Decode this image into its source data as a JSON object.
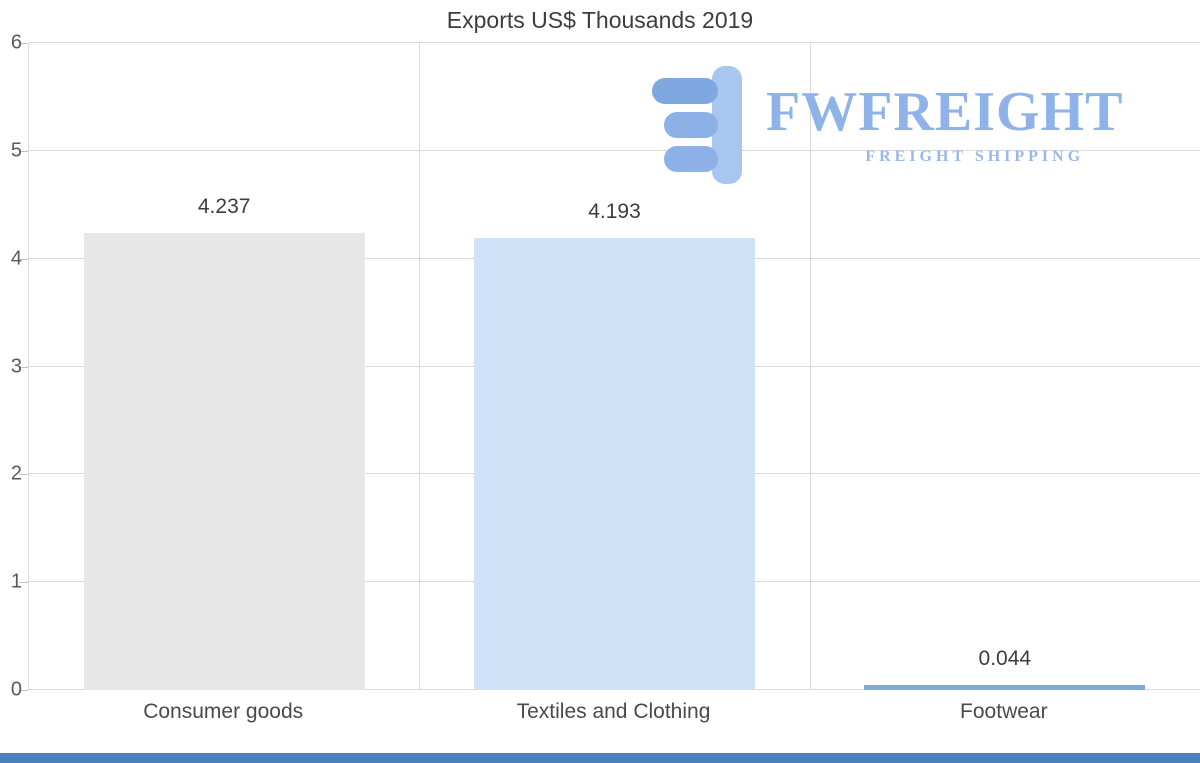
{
  "chart_data": {
    "type": "bar",
    "title": "Exports US$ Thousands 2019",
    "categories": [
      "Consumer goods",
      "Textiles and Clothing",
      "Footwear"
    ],
    "values": [
      4.237,
      4.193,
      0.044
    ],
    "value_labels": [
      "4.237",
      "4.193",
      "0.044"
    ],
    "bar_colors": [
      "#e7e7e7",
      "#cfe3f8",
      "#7fa9da"
    ],
    "xlabel": "",
    "ylabel": "",
    "ylim": [
      0,
      6
    ],
    "yticks": [
      0,
      1,
      2,
      3,
      4,
      5,
      6
    ],
    "grid": true,
    "legend": false
  },
  "logo": {
    "name": "FWFREIGHT",
    "tagline": "FREIGHT SHIPPING",
    "icon": "f-blocks-icon",
    "color_primary": "#8fb3e8",
    "color_icon_light": "#a9c6f0",
    "color_icon_dark": "#7fa7e0"
  },
  "footer": {
    "color": "#4d80c0"
  }
}
